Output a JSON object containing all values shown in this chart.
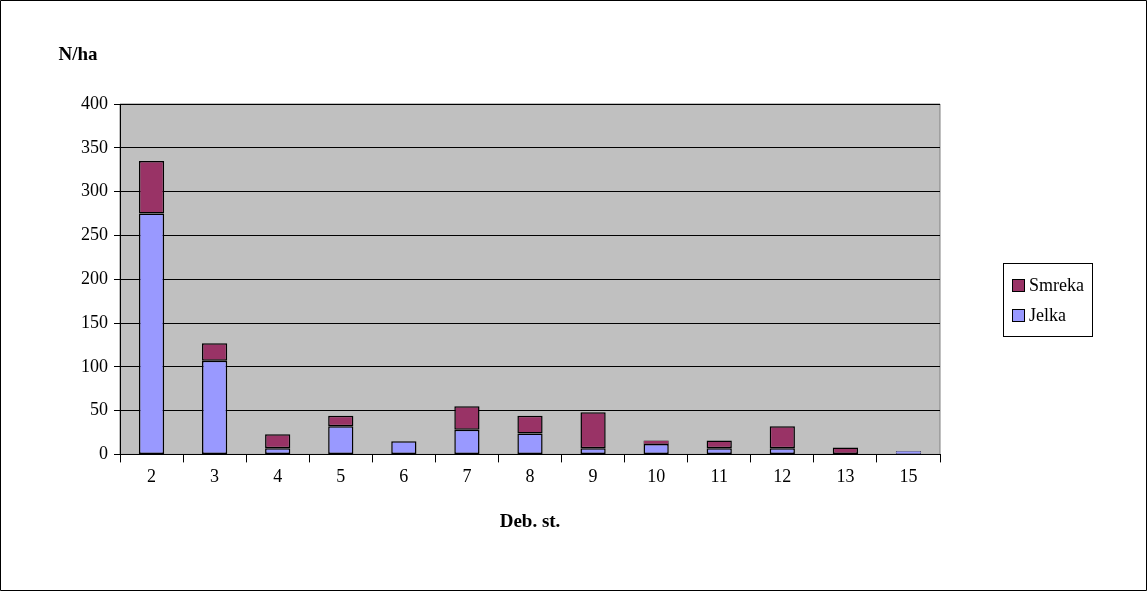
{
  "chart_data": {
    "type": "bar",
    "stacked": true,
    "ylabel": "N/ha",
    "xlabel": "Deb. st.",
    "categories": [
      "2",
      "3",
      "4",
      "5",
      "6",
      "7",
      "8",
      "9",
      "10",
      "11",
      "12",
      "13",
      "15"
    ],
    "series": [
      {
        "name": "Jelka",
        "color": "#9999ff",
        "values": [
          275,
          107,
          7,
          32,
          15,
          28,
          24,
          7,
          12,
          7,
          7,
          0,
          4
        ]
      },
      {
        "name": "Smreka",
        "color": "#993366",
        "values": [
          60,
          20,
          16,
          12,
          0,
          27,
          20,
          41,
          4,
          9,
          25,
          8,
          0
        ]
      }
    ],
    "ylim": [
      0,
      400
    ],
    "yticks": [
      0,
      50,
      100,
      150,
      200,
      250,
      300,
      350,
      400
    ],
    "grid": "y",
    "legend": "right"
  }
}
